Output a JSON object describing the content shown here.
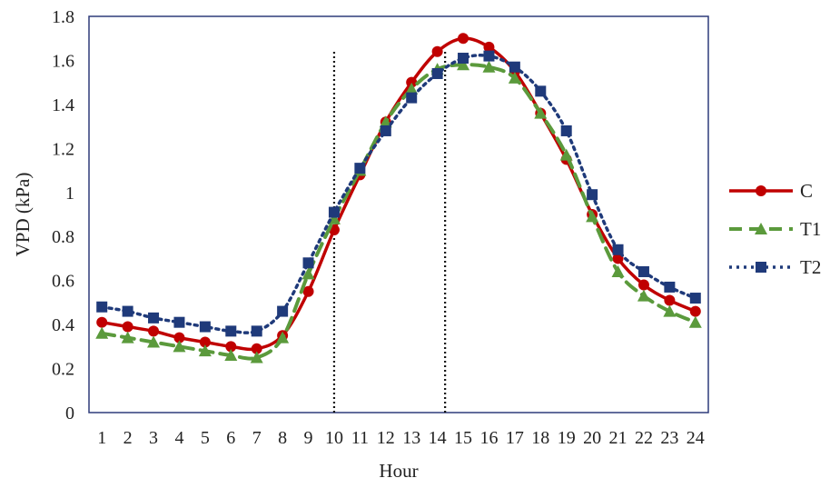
{
  "chart_data": {
    "type": "line",
    "title": "",
    "xlabel": "Hour",
    "ylabel": "VPD (kPa)",
    "x": [
      1,
      2,
      3,
      4,
      5,
      6,
      7,
      8,
      9,
      10,
      11,
      12,
      13,
      14,
      15,
      16,
      17,
      18,
      19,
      20,
      21,
      22,
      23,
      24
    ],
    "x_ticks": [
      "1",
      "2",
      "3",
      "4",
      "5",
      "6",
      "7",
      "8",
      "9",
      "10",
      "11",
      "12",
      "13",
      "14",
      "15",
      "16",
      "17",
      "18",
      "19",
      "20",
      "21",
      "22",
      "23",
      "24"
    ],
    "ylim": [
      0,
      1.8
    ],
    "y_ticks": [
      "0",
      "0.2",
      "0.4",
      "0.6",
      "0.8",
      "1",
      "1.2",
      "1.4",
      "1.6",
      "1.8"
    ],
    "grid": false,
    "legend": "right",
    "series": [
      {
        "name": "C",
        "color": "#c00000",
        "marker": "circle",
        "line_style": "solid",
        "values": [
          0.41,
          0.39,
          0.37,
          0.34,
          0.32,
          0.3,
          0.29,
          0.35,
          0.55,
          0.83,
          1.08,
          1.32,
          1.5,
          1.64,
          1.7,
          1.66,
          1.55,
          1.36,
          1.15,
          0.9,
          0.7,
          0.58,
          0.51,
          0.46
        ]
      },
      {
        "name": "T1",
        "color": "#5b9a3c",
        "marker": "triangle",
        "line_style": "dashed",
        "values": [
          0.36,
          0.34,
          0.32,
          0.3,
          0.28,
          0.26,
          0.25,
          0.34,
          0.63,
          0.88,
          1.1,
          1.32,
          1.47,
          1.56,
          1.58,
          1.57,
          1.52,
          1.36,
          1.17,
          0.89,
          0.64,
          0.53,
          0.46,
          0.41
        ]
      },
      {
        "name": "T2",
        "color": "#1f3a7a",
        "marker": "square",
        "line_style": "dotted",
        "values": [
          0.48,
          0.46,
          0.43,
          0.41,
          0.39,
          0.37,
          0.37,
          0.46,
          0.68,
          0.91,
          1.11,
          1.28,
          1.43,
          1.54,
          1.61,
          1.62,
          1.57,
          1.46,
          1.28,
          0.99,
          0.74,
          0.64,
          0.57,
          0.52
        ]
      }
    ],
    "reference_lines": [
      10,
      14.3
    ]
  }
}
